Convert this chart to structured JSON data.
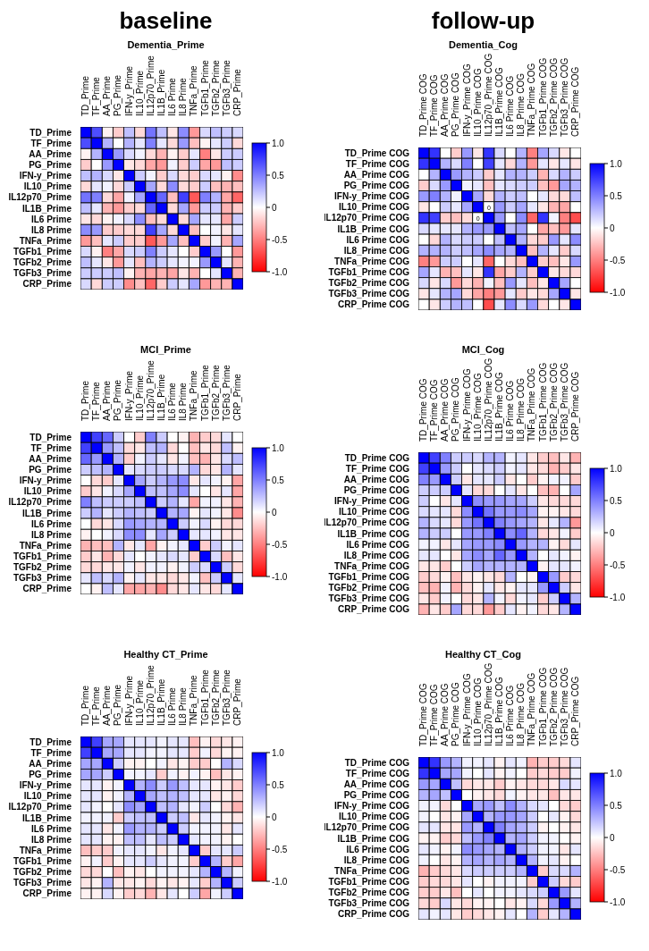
{
  "chart_data": [
    {
      "type": "heatmap",
      "title": "Dementia_Prime",
      "annotations": [
        "baseline"
      ],
      "categories": [
        "TD_Prime",
        "TF_Prime",
        "AA_Prime",
        "PG_Prime",
        "IFN-y_Prime",
        "IL10_Prime",
        "IL12p70_Prime",
        "IL1B_Prime",
        "IL6 Prime",
        "IL8 Prime",
        "TNFa_Prime",
        "TGFb1_Prime",
        "TGFb2_Prime",
        "TGFb3_Prime",
        "CRP_Prime"
      ],
      "y_categories": [
        "TD_Prime",
        "TF_Prime",
        "AA_Prime",
        "PG_Prime",
        "IFN-y_Prime",
        "IL10_Prime",
        "IL12p70_Prime",
        "IL1B_Prime",
        "IL6 Prime",
        "IL8 Prime",
        "TNFa_Prime",
        "TGFb1_Prime",
        "TGFb2_Prime",
        "TGFb3_Prime",
        "CRP_Prime"
      ],
      "cells": [
        [
          1,
          0.7,
          -0.05,
          -0.2,
          0.25,
          -0.15,
          0.55,
          0.25,
          -0.1,
          0.45,
          -0.4,
          0.15,
          0.25,
          0.2,
          0.15
        ],
        [
          0.7,
          1,
          0.3,
          0,
          0.3,
          0.1,
          0.5,
          0.1,
          -0.15,
          0.4,
          -0.25,
          -0.05,
          0.1,
          0.2,
          -0.15
        ],
        [
          -0.05,
          0.3,
          1,
          0.4,
          0.15,
          0.05,
          -0.15,
          -0.3,
          -0.05,
          -0.2,
          0.1,
          -0.5,
          -0.1,
          0.2,
          0.2
        ],
        [
          -0.2,
          0,
          0.4,
          1,
          -0.1,
          -0.15,
          -0.35,
          -0.4,
          0.05,
          -0.2,
          0.2,
          -0.35,
          -0.4,
          0.25,
          0.2
        ],
        [
          0.25,
          0.3,
          0.15,
          -0.1,
          1,
          0.2,
          0.05,
          -0.2,
          0.15,
          -0.15,
          -0.2,
          0.15,
          0.1,
          -0.05,
          -0.45
        ],
        [
          -0.15,
          0.1,
          0.05,
          -0.15,
          0.2,
          1,
          0.35,
          -0.15,
          0.45,
          -0.15,
          -0.2,
          0.2,
          -0.25,
          -0.3,
          -0.25
        ],
        [
          0.55,
          0.5,
          -0.15,
          -0.35,
          0.05,
          0.35,
          1,
          0.6,
          -0.25,
          0.75,
          -0.65,
          0.5,
          0.3,
          -0.35,
          -0.6
        ],
        [
          0.25,
          0.1,
          -0.3,
          -0.4,
          -0.2,
          -0.15,
          0.6,
          1,
          -0.15,
          0.35,
          -0.4,
          0.2,
          0.2,
          -0.3,
          -0.2
        ],
        [
          -0.1,
          -0.15,
          -0.05,
          0.05,
          0.15,
          0.45,
          -0.25,
          -0.15,
          1,
          -0.15,
          0.35,
          0.1,
          0.1,
          -0.35,
          0.2
        ],
        [
          0.45,
          0.4,
          -0.2,
          -0.2,
          -0.15,
          -0.15,
          0.75,
          0.35,
          -0.15,
          1,
          -0.25,
          0,
          0.05,
          -0.1,
          0.1
        ],
        [
          -0.4,
          -0.25,
          0.1,
          0.2,
          -0.2,
          -0.2,
          -0.65,
          -0.4,
          0.35,
          -0.25,
          1,
          -0.2,
          0.05,
          -0.3,
          0.35
        ],
        [
          0.15,
          -0.05,
          -0.5,
          -0.35,
          0.15,
          0.2,
          0.5,
          0.2,
          0.1,
          0,
          -0.2,
          1,
          0.4,
          0,
          -0.4
        ],
        [
          0.25,
          0.1,
          -0.1,
          -0.4,
          0.1,
          -0.25,
          0.3,
          0.2,
          0.1,
          0.05,
          0.05,
          0.4,
          1,
          0.1,
          -0.3
        ],
        [
          0.2,
          0.2,
          0.2,
          0.25,
          -0.05,
          -0.3,
          -0.35,
          -0.3,
          -0.35,
          -0.1,
          -0.3,
          0,
          0.1,
          1,
          -0.3
        ],
        [
          0.15,
          -0.15,
          0.2,
          0.2,
          -0.45,
          -0.25,
          -0.6,
          -0.2,
          0.2,
          0.1,
          0.35,
          -0.4,
          -0.3,
          -0.3,
          1
        ]
      ],
      "clim": [
        -1,
        1
      ],
      "cticks": [
        {
          "value": 1,
          "label": "1.0"
        },
        {
          "value": 0.5,
          "label": "0.5"
        },
        {
          "value": 0,
          "label": "0"
        },
        {
          "value": -0.5,
          "label": "-0.5"
        },
        {
          "value": -1,
          "label": "-1.0"
        }
      ]
    },
    {
      "type": "heatmap",
      "title": "Dementia_Cog",
      "annotations": [
        "follow-up"
      ],
      "categories": [
        "TD_Prime COG",
        "TF_Prime COG",
        "AA_Prime COG",
        "PG_Prime COG",
        "IFN-y_Prime COG",
        "IL10_Prime COG",
        "IL12p70_Prime COG",
        "IL1B_Prime COG",
        "IL6 Prime COG",
        "IL8_Prime COG",
        "TNFa_Prime COG",
        "TGFb1_Prime COG",
        "TGFb2_Prime COG",
        "TGFb3_Prime COG",
        "CRP_Prime COG"
      ],
      "y_categories": [
        "TD_Prime COG",
        "TF_Prime COG",
        "AA_Prime COG",
        "PG_Prime COG",
        "IFN-y_Prime COG",
        "IL10_Prime COG",
        "IL12p70_Prime COG",
        "IL1B_Prime COG",
        "IL6 Prime COG",
        "IL8_Prime COG",
        "TNFa_Prime COG",
        "TGFb1_Prime COG",
        "TGFb2_Prime COG",
        "TGFb3_Prime COG",
        "CRP_Prime COG"
      ],
      "cells": [
        [
          1,
          0.8,
          0,
          -0.2,
          0.4,
          -0.1,
          0.8,
          0.15,
          0,
          0.3,
          -0.5,
          0.35,
          0.15,
          -0.1,
          0
        ],
        [
          0.8,
          1,
          0.3,
          0.15,
          0.5,
          0,
          0.75,
          0.1,
          -0.15,
          0.3,
          -0.4,
          0.1,
          -0.1,
          0.1,
          -0.1
        ],
        [
          0,
          0.3,
          1,
          0.4,
          0.3,
          0.2,
          -0.2,
          0.1,
          0.3,
          0.3,
          0.2,
          -0.3,
          0.15,
          0.3,
          0.2
        ],
        [
          -0.2,
          0.15,
          0.4,
          1,
          0.05,
          0.1,
          -0.25,
          0.1,
          0.15,
          0.2,
          0.2,
          -0.25,
          -0.4,
          0.35,
          0.3
        ],
        [
          0.4,
          0.5,
          0.3,
          0.05,
          1,
          0.35,
          -0.15,
          0.3,
          0.2,
          0.25,
          0,
          0.1,
          -0.15,
          -0.15,
          0.25
        ],
        [
          -0.1,
          0,
          0.2,
          0.1,
          0.35,
          1,
          0,
          0.4,
          0.2,
          0.35,
          0.1,
          -0.1,
          -0.3,
          -0.35,
          0
        ],
        [
          0.8,
          0.75,
          -0.2,
          -0.25,
          -0.15,
          0,
          1,
          0.4,
          0,
          0.45,
          -0.6,
          0.8,
          0.05,
          -0.5,
          -0.7
        ],
        [
          0.15,
          0.1,
          0.1,
          0.1,
          0.3,
          0.4,
          0.4,
          1,
          0.25,
          0.35,
          0,
          -0.35,
          -0.25,
          -0.4,
          0.1
        ],
        [
          0,
          -0.15,
          0.3,
          0.15,
          0.2,
          0.2,
          0,
          0.25,
          1,
          0.3,
          -0.15,
          -0.2,
          0.4,
          0.1,
          0.45
        ],
        [
          0.3,
          0.3,
          0.3,
          0.2,
          0.25,
          0.35,
          0.45,
          0.35,
          0.3,
          1,
          -0.25,
          0.3,
          0.1,
          -0.2,
          0.15
        ],
        [
          -0.5,
          -0.4,
          0.2,
          0.2,
          0,
          0.1,
          -0.6,
          0,
          -0.15,
          -0.25,
          1,
          -0.2,
          -0.25,
          -0.1,
          0.4
        ],
        [
          0.35,
          0.1,
          -0.3,
          -0.25,
          0.1,
          -0.1,
          0.8,
          -0.35,
          -0.2,
          0.3,
          -0.2,
          1,
          -0.1,
          -0.15,
          -0.15
        ],
        [
          0.15,
          -0.1,
          0.15,
          -0.4,
          -0.15,
          -0.3,
          0.05,
          -0.25,
          0.4,
          0.1,
          -0.25,
          -0.1,
          1,
          0.35,
          0
        ],
        [
          -0.1,
          0.1,
          0.3,
          0.35,
          -0.15,
          -0.35,
          -0.5,
          -0.4,
          0.1,
          -0.2,
          -0.1,
          -0.15,
          0.35,
          1,
          -0.1
        ],
        [
          0,
          -0.1,
          0.2,
          0.3,
          0.25,
          0,
          -0.7,
          0.1,
          0.45,
          0.15,
          0.4,
          -0.15,
          0,
          -0.1,
          1
        ]
      ],
      "cell_labels": [
        [
          null,
          null,
          null,
          null,
          null,
          null,
          null,
          null,
          null,
          null,
          null,
          null,
          null,
          null,
          null
        ],
        [
          null,
          null,
          null,
          null,
          null,
          null,
          null,
          null,
          null,
          null,
          null,
          null,
          null,
          null,
          null
        ],
        [
          null,
          null,
          null,
          null,
          null,
          null,
          null,
          null,
          null,
          null,
          null,
          null,
          null,
          null,
          null
        ],
        [
          null,
          null,
          null,
          null,
          null,
          null,
          null,
          null,
          null,
          null,
          null,
          null,
          null,
          null,
          null
        ],
        [
          null,
          null,
          null,
          null,
          null,
          null,
          null,
          null,
          null,
          null,
          null,
          null,
          null,
          null,
          null
        ],
        [
          null,
          null,
          null,
          null,
          null,
          null,
          "0",
          null,
          null,
          null,
          null,
          null,
          null,
          null,
          null
        ],
        [
          null,
          null,
          null,
          null,
          null,
          "0",
          null,
          null,
          null,
          null,
          null,
          null,
          null,
          null,
          null
        ],
        [
          null,
          null,
          null,
          null,
          null,
          null,
          null,
          null,
          null,
          null,
          null,
          null,
          null,
          null,
          null
        ],
        [
          null,
          null,
          null,
          null,
          null,
          null,
          null,
          null,
          null,
          null,
          null,
          null,
          null,
          null,
          null
        ],
        [
          null,
          null,
          null,
          null,
          null,
          null,
          null,
          null,
          null,
          null,
          null,
          null,
          null,
          null,
          null
        ],
        [
          null,
          null,
          null,
          null,
          null,
          null,
          null,
          null,
          null,
          null,
          null,
          null,
          null,
          null,
          null
        ],
        [
          null,
          null,
          null,
          null,
          null,
          null,
          null,
          null,
          null,
          null,
          null,
          null,
          null,
          null,
          null
        ],
        [
          null,
          null,
          null,
          null,
          null,
          null,
          null,
          null,
          null,
          null,
          null,
          null,
          null,
          null,
          null
        ],
        [
          null,
          null,
          null,
          null,
          null,
          null,
          null,
          null,
          null,
          null,
          null,
          null,
          null,
          null,
          null
        ],
        [
          null,
          null,
          null,
          null,
          null,
          null,
          null,
          null,
          null,
          null,
          null,
          null,
          null,
          null,
          null
        ]
      ],
      "clim": [
        -1,
        1
      ],
      "cticks": [
        {
          "value": 1,
          "label": "1.0"
        },
        {
          "value": 0.5,
          "label": "0.5"
        },
        {
          "value": 0,
          "label": "0"
        },
        {
          "value": -0.5,
          "label": "-0.5"
        },
        {
          "value": -1,
          "label": "-1.0"
        }
      ]
    },
    {
      "type": "heatmap",
      "title": "MCI_Prime",
      "categories": [
        "TD_Prime",
        "TF_Prime",
        "AA_Prime",
        "PG_Prime",
        "IFN-y_Prime",
        "IL10_Prime",
        "IL12p70_Prime",
        "IL1B_Prime",
        "IL6 Prime",
        "IL8 Prime",
        "TNFa_Prime",
        "TGFb1_Prime",
        "TGFb2_Prime",
        "TGFb3_Prime",
        "CRP_Prime"
      ],
      "y_categories": [
        "TD_Prime",
        "TF_Prime",
        "AA_Prime",
        "PG_Prime",
        "IFN-y_Prime",
        "IL10_Prime",
        "IL12p70_Prime",
        "IL1B_Prime",
        "IL6 Prime",
        "IL8 Prime",
        "TNFa_Prime",
        "TGFb1_Prime",
        "TGFb2_Prime",
        "TGFb3_Prime",
        "CRP_Prime"
      ],
      "cells": [
        [
          1,
          0.75,
          0.6,
          0.2,
          0,
          -0.2,
          0.5,
          0.2,
          0,
          -0.05,
          -0.3,
          -0.2,
          -0.15,
          0.1,
          0
        ],
        [
          0.75,
          1,
          0.4,
          0.25,
          -0.15,
          -0.1,
          0.25,
          0.3,
          -0.15,
          0,
          -0.25,
          -0.1,
          -0.15,
          0.25,
          -0.05
        ],
        [
          0.6,
          0.4,
          1,
          0.3,
          -0.2,
          0.05,
          0.2,
          0.1,
          -0.1,
          0.05,
          -0.25,
          -0.3,
          -0.1,
          0.15,
          0.25
        ],
        [
          0.2,
          0.25,
          0.3,
          1,
          0.1,
          0.15,
          0.2,
          0.2,
          0.15,
          0.15,
          0.3,
          -0.15,
          -0.1,
          0.3,
          0.1
        ],
        [
          0,
          -0.15,
          -0.2,
          0.1,
          1,
          0.35,
          0.2,
          0.3,
          0.4,
          0.45,
          -0.1,
          0.1,
          0.05,
          -0.05,
          -0.35
        ],
        [
          -0.2,
          -0.1,
          0.05,
          0.15,
          0.35,
          1,
          0.25,
          0.25,
          0.35,
          0.45,
          0.1,
          0,
          -0.1,
          0.1,
          -0.35
        ],
        [
          0.5,
          0.25,
          0.2,
          0.2,
          0.2,
          0.25,
          1,
          0.2,
          0.3,
          0.1,
          -0.35,
          0.05,
          0.05,
          -0.1,
          -0.3
        ],
        [
          0.2,
          0.3,
          0.1,
          0.2,
          0.3,
          0.25,
          0.2,
          1,
          0.3,
          0.35,
          -0.05,
          0.1,
          0.05,
          -0.1,
          -0.45
        ],
        [
          0,
          -0.15,
          -0.1,
          0.15,
          0.4,
          0.35,
          0.3,
          0.3,
          1,
          0.2,
          0.05,
          0.15,
          -0.05,
          -0.15,
          -0.15
        ],
        [
          -0.05,
          0,
          0.05,
          0.15,
          0.45,
          0.45,
          0.1,
          0.35,
          0.2,
          1,
          0.1,
          0.1,
          0.05,
          -0.1,
          -0.1
        ],
        [
          -0.3,
          -0.25,
          -0.25,
          0.3,
          -0.1,
          0.1,
          -0.35,
          -0.05,
          0.05,
          0.1,
          1,
          -0.2,
          0.2,
          0.05,
          0.1
        ],
        [
          -0.2,
          -0.1,
          -0.3,
          -0.15,
          0.1,
          0,
          0.05,
          0.1,
          0.15,
          0.1,
          -0.2,
          1,
          0.15,
          -0.25,
          -0.1
        ],
        [
          -0.15,
          -0.15,
          -0.1,
          -0.1,
          0.05,
          -0.1,
          0.05,
          0.05,
          -0.05,
          0.05,
          0.2,
          0.15,
          1,
          0.2,
          -0.15
        ],
        [
          0.1,
          0.25,
          0.15,
          0.3,
          -0.05,
          0.1,
          -0.1,
          -0.1,
          -0.15,
          -0.1,
          0.05,
          -0.25,
          0.2,
          1,
          0.1
        ],
        [
          0,
          -0.05,
          0.25,
          0.1,
          -0.35,
          -0.35,
          -0.3,
          -0.45,
          -0.15,
          -0.1,
          0.1,
          -0.1,
          -0.15,
          0.1,
          1
        ]
      ],
      "clim": [
        -1,
        1
      ],
      "cticks": [
        {
          "value": 1,
          "label": "1.0"
        },
        {
          "value": 0.5,
          "label": "0.5"
        },
        {
          "value": 0,
          "label": "0"
        },
        {
          "value": -0.5,
          "label": "-0.5"
        },
        {
          "value": -1,
          "label": "-1.0"
        }
      ]
    },
    {
      "type": "heatmap",
      "title": "MCI_Cog",
      "categories": [
        "TD_Prime COG",
        "TF_Prime COG",
        "AA_Prime COG",
        "PG_Prime COG",
        "IFN-y_Prime COG",
        "IL10_Prime COG",
        "IL12p70_Prime COG",
        "IL1B_Prime COG",
        "IL6 Prime COG",
        "IL8_Prime COG",
        "TNFa_Prime COG",
        "TGFb1_Prime COG",
        "TGFb2_Prime COG",
        "TGFb3_Prime COG",
        "CRP_Prime COG"
      ],
      "y_categories": [
        "TD_Prime COG",
        "TF_Prime COG",
        "AA_Prime COG",
        "PG_Prime COG",
        "IFN-y_Prime COG",
        "IL10_Prime COG",
        "IL12p70_Prime COG",
        "IL1B_Prime COG",
        "IL6 Prime COG",
        "IL8_Prime COG",
        "TNFa_Prime COG",
        "TGFb1_Prime COG",
        "TGFb2_Prime COG",
        "TGFb3_Prime COG",
        "CRP_Prime COG"
      ],
      "cells": [
        [
          1,
          0.75,
          0.5,
          0.2,
          0.2,
          0.15,
          0.3,
          0.3,
          0.05,
          0.1,
          -0.1,
          -0.2,
          -0.25,
          -0.1,
          -0.3
        ],
        [
          0.75,
          1,
          0.4,
          0.2,
          0,
          0.1,
          0.15,
          0.2,
          0.05,
          0.1,
          -0.1,
          -0.15,
          -0.3,
          -0.2,
          -0.1
        ],
        [
          0.5,
          0.4,
          1,
          0.2,
          -0.1,
          0.1,
          0.1,
          0.2,
          -0.1,
          0,
          -0.2,
          -0.05,
          0.05,
          0.05,
          -0.2
        ],
        [
          0.2,
          0.2,
          0.2,
          1,
          0.1,
          -0.15,
          -0.15,
          0,
          0.1,
          -0.1,
          0,
          -0.25,
          -0.3,
          0,
          0.35
        ],
        [
          0.2,
          0,
          -0.1,
          0.1,
          1,
          0.45,
          0.4,
          0.4,
          0.35,
          0.35,
          0.2,
          -0.1,
          -0.15,
          -0.15,
          -0.15
        ],
        [
          0.15,
          0.1,
          0.1,
          -0.15,
          0.45,
          1,
          0.55,
          0.4,
          0.4,
          0.45,
          0.35,
          -0.05,
          -0.05,
          -0.1,
          -0.15
        ],
        [
          0.3,
          0.15,
          0.1,
          -0.15,
          0.4,
          0.55,
          1,
          0.5,
          0.4,
          0.35,
          0.3,
          -0.1,
          0.1,
          0.3,
          -0.4
        ],
        [
          0.3,
          0.2,
          0.2,
          0,
          0.4,
          0.4,
          0.5,
          1,
          0.45,
          0.6,
          0.3,
          -0.15,
          -0.1,
          0.05,
          -0.2
        ],
        [
          0.05,
          0.05,
          -0.1,
          0.1,
          0.35,
          0.4,
          0.4,
          0.45,
          1,
          0.4,
          0.3,
          0.3,
          -0.05,
          -0.15,
          0.1
        ],
        [
          0.1,
          0.1,
          0,
          -0.1,
          0.35,
          0.45,
          0.35,
          0.6,
          0.4,
          1,
          0.3,
          0,
          0.1,
          0.05,
          -0.05
        ],
        [
          -0.1,
          -0.1,
          -0.2,
          0,
          0.2,
          0.35,
          0.3,
          0.3,
          0.3,
          0.3,
          1,
          -0.05,
          0.1,
          0.1,
          0.05
        ],
        [
          -0.2,
          -0.15,
          -0.05,
          -0.25,
          -0.1,
          -0.05,
          -0.1,
          -0.15,
          0.3,
          0,
          -0.05,
          1,
          0.4,
          -0.2,
          -0.15
        ],
        [
          -0.25,
          -0.3,
          0.05,
          -0.3,
          -0.15,
          -0.05,
          0.1,
          -0.1,
          -0.05,
          0.1,
          0.1,
          0.4,
          1,
          0.2,
          -0.1
        ],
        [
          -0.1,
          -0.2,
          0.05,
          0,
          -0.15,
          -0.1,
          0.3,
          0.05,
          -0.15,
          0.05,
          0.1,
          -0.2,
          0.2,
          1,
          0.3
        ],
        [
          -0.3,
          -0.1,
          -0.2,
          0.35,
          -0.15,
          -0.15,
          -0.4,
          -0.2,
          0.1,
          -0.05,
          0.05,
          -0.15,
          -0.1,
          0.3,
          1
        ]
      ],
      "clim": [
        -1,
        1
      ],
      "cticks": [
        {
          "value": 1,
          "label": "1.0"
        },
        {
          "value": 0.5,
          "label": "0.5"
        },
        {
          "value": 0,
          "label": "0"
        },
        {
          "value": -0.5,
          "label": "-0.5"
        },
        {
          "value": -1,
          "label": "-1.0"
        }
      ]
    },
    {
      "type": "heatmap",
      "title": "Healthy CT_Prime",
      "categories": [
        "TD_Prime",
        "TF_Prime",
        "AA_Prime",
        "PG_Prime",
        "IFN-y_Prime",
        "IL10_Prime",
        "IL12p70_Prime",
        "IL1B_Prime",
        "IL6 Prime",
        "IL8 Prime",
        "TNFa_Prime",
        "TGFb1_Prime",
        "TGFb2_Prime",
        "TGFb3_Prime",
        "CRP_Prime"
      ],
      "y_categories": [
        "TD_Prime",
        "TF_Prime",
        "AA_Prime",
        "PG_Prime",
        "IFN-y_Prime",
        "IL10_Prime",
        "IL12p70_Prime",
        "IL1B_Prime",
        "IL6 Prime",
        "IL8 Prime",
        "TNFa_Prime",
        "TGFb1_Prime",
        "TGFb2_Prime",
        "TGFb3_Prime",
        "CRP_Prime"
      ],
      "cells": [
        [
          1,
          0.75,
          0.35,
          0.35,
          0.1,
          0.1,
          0.1,
          0.05,
          0.1,
          0.1,
          -0.25,
          -0.05,
          -0.15,
          -0.1,
          -0.05
        ],
        [
          0.75,
          1,
          0.35,
          0.35,
          0.1,
          0.1,
          0.05,
          0.05,
          0.1,
          0.1,
          -0.2,
          0.05,
          -0.15,
          -0.05,
          -0.05
        ],
        [
          0.35,
          0.35,
          1,
          0.2,
          -0.05,
          -0.05,
          0,
          0.05,
          -0.1,
          -0.05,
          -0.2,
          -0.2,
          0,
          0.3,
          0.15
        ],
        [
          0.35,
          0.35,
          0.2,
          1,
          0.05,
          0.05,
          0.1,
          -0.2,
          0.05,
          -0.05,
          0.05,
          -0.05,
          -0.25,
          -0.1,
          -0.05
        ],
        [
          0.1,
          0.1,
          -0.05,
          0.05,
          1,
          0.3,
          0.45,
          0.2,
          0.4,
          0.25,
          0.1,
          0.1,
          -0.05,
          -0.1,
          -0.2
        ],
        [
          0.1,
          0.1,
          -0.05,
          0.05,
          0.3,
          1,
          0.35,
          0.25,
          0.3,
          0.25,
          0.1,
          0.1,
          -0.1,
          -0.05,
          -0.15
        ],
        [
          0.1,
          0.05,
          0,
          0.1,
          0.45,
          0.35,
          1,
          0.25,
          0.3,
          0.1,
          0.05,
          0.2,
          0,
          -0.15,
          -0.3
        ],
        [
          0.05,
          0.05,
          0.05,
          -0.2,
          0.2,
          0.25,
          0.25,
          1,
          0.2,
          0.25,
          -0.1,
          0.1,
          0.05,
          -0.05,
          -0.1
        ],
        [
          0.1,
          0.1,
          -0.1,
          0.05,
          0.4,
          0.3,
          0.3,
          0.2,
          1,
          0.2,
          0.05,
          0.05,
          0.05,
          -0.1,
          0.1
        ],
        [
          0.1,
          0.1,
          -0.05,
          -0.05,
          0.25,
          0.25,
          0.1,
          0.25,
          0.2,
          1,
          0.1,
          0.05,
          0.05,
          -0.05,
          0
        ],
        [
          -0.25,
          -0.2,
          -0.2,
          0.05,
          0.1,
          0.1,
          0.05,
          -0.1,
          0.05,
          0.1,
          1,
          -0.2,
          0.1,
          0.1,
          0.2
        ],
        [
          -0.05,
          0.05,
          -0.2,
          -0.05,
          0.1,
          0.1,
          0.2,
          0.1,
          0.05,
          0.05,
          -0.2,
          1,
          0.3,
          -0.2,
          -0.35
        ],
        [
          -0.15,
          -0.15,
          0,
          -0.25,
          -0.05,
          -0.1,
          0,
          0.05,
          0.05,
          0.05,
          0.1,
          0.3,
          1,
          0.3,
          0.05
        ],
        [
          -0.1,
          -0.05,
          0.3,
          -0.1,
          -0.1,
          -0.05,
          -0.15,
          -0.05,
          -0.1,
          -0.05,
          0.1,
          -0.2,
          0.3,
          1,
          0.2
        ],
        [
          -0.05,
          -0.05,
          0.15,
          -0.05,
          -0.2,
          -0.15,
          -0.3,
          -0.1,
          0.1,
          0,
          0.2,
          -0.35,
          0.05,
          0.2,
          1
        ]
      ],
      "clim": [
        -1,
        1
      ],
      "cticks": [
        {
          "value": 1,
          "label": "1.0"
        },
        {
          "value": 0.5,
          "label": "0.5"
        },
        {
          "value": 0,
          "label": "0"
        },
        {
          "value": -0.5,
          "label": "-0.5"
        },
        {
          "value": -1,
          "label": "-1.0"
        }
      ]
    },
    {
      "type": "heatmap",
      "title": "Healthy CT_Cog",
      "categories": [
        "TD_Prime COG",
        "TF_Prime COG",
        "AA_Prime COG",
        "PG_Prime COG",
        "IFN-y_Prime COG",
        "IL10_Prime COG",
        "IL12p70_Prime COG",
        "IL1B_Prime COG",
        "IL6 Prime COG",
        "IL8_Prime COG",
        "TNFa_Prime COG",
        "TGFb1_Prime COG",
        "TGFb2_Prime COG",
        "TGFb3_Prime COG",
        "CRP_Prime COG"
      ],
      "y_categories": [
        "TD_Prime COG",
        "TF_Prime COG",
        "AA_Prime COG",
        "PG_Prime COG",
        "IFN-y_Prime COG",
        "IL10_Prime COG",
        "IL12p70_Prime COG",
        "IL1B_Prime COG",
        "IL6 Prime COG",
        "IL8_Prime COG",
        "TNFa_Prime COG",
        "TGFb1_Prime COG",
        "TGFb2_Prime COG",
        "TGFb3_Prime COG",
        "CRP_Prime COG"
      ],
      "cells": [
        [
          1,
          0.8,
          0.4,
          0.3,
          0.05,
          0.05,
          0.1,
          -0.05,
          0.1,
          0.05,
          -0.3,
          -0.2,
          -0.2,
          -0.15,
          0.1
        ],
        [
          0.8,
          1,
          0.35,
          0.35,
          0.05,
          0,
          0.1,
          -0.05,
          0.05,
          0,
          -0.2,
          -0.15,
          -0.2,
          -0.2,
          0.05
        ],
        [
          0.4,
          0.35,
          1,
          0.25,
          -0.15,
          -0.1,
          -0.1,
          -0.2,
          -0.05,
          -0.1,
          -0.15,
          -0.15,
          -0.1,
          0.15,
          0.1
        ],
        [
          0.3,
          0.35,
          0.25,
          1,
          0,
          -0.05,
          -0.1,
          -0.15,
          0.05,
          -0.05,
          -0.1,
          -0.1,
          -0.25,
          -0.1,
          -0.1
        ],
        [
          0.05,
          0.05,
          -0.15,
          0,
          1,
          0.35,
          0.4,
          0.25,
          0.45,
          0.3,
          0.15,
          0.1,
          0,
          -0.15,
          -0.2
        ],
        [
          0.05,
          0,
          -0.1,
          -0.05,
          0.35,
          1,
          0.3,
          0.4,
          0.4,
          0.35,
          0.2,
          0,
          0.1,
          -0.05,
          -0.15
        ],
        [
          0.1,
          0.1,
          -0.1,
          -0.1,
          0.4,
          0.3,
          1,
          0.5,
          0.35,
          0.3,
          0.2,
          -0.05,
          0,
          -0.05,
          -0.1
        ],
        [
          -0.05,
          -0.05,
          -0.2,
          -0.15,
          0.25,
          0.4,
          0.5,
          1,
          0.3,
          0.35,
          0.2,
          0.05,
          0.05,
          0,
          -0.05
        ],
        [
          0.1,
          0.05,
          -0.05,
          0.05,
          0.45,
          0.4,
          0.35,
          0.3,
          1,
          0.3,
          0.2,
          0.05,
          0.05,
          -0.1,
          0.1
        ],
        [
          0.05,
          0,
          -0.1,
          -0.05,
          0.3,
          0.35,
          0.3,
          0.35,
          0.3,
          1,
          0.3,
          0.05,
          0.1,
          -0.05,
          0
        ],
        [
          -0.3,
          -0.2,
          -0.15,
          -0.1,
          0.15,
          0.2,
          0.2,
          0.2,
          0.2,
          0.3,
          1,
          -0.2,
          0.15,
          0.15,
          0.3
        ],
        [
          -0.2,
          -0.15,
          -0.15,
          -0.1,
          0.1,
          0,
          -0.05,
          0.05,
          0.05,
          0.05,
          -0.2,
          1,
          0.2,
          -0.15,
          -0.2
        ],
        [
          -0.2,
          -0.2,
          -0.1,
          -0.25,
          0,
          0.1,
          0,
          0.05,
          0.05,
          0.1,
          0.15,
          0.2,
          1,
          0.4,
          0.1
        ],
        [
          -0.15,
          -0.2,
          0.15,
          -0.1,
          -0.15,
          -0.05,
          -0.05,
          0,
          -0.1,
          -0.05,
          0.15,
          -0.15,
          0.4,
          1,
          0.3
        ],
        [
          0.1,
          0.05,
          0.1,
          -0.1,
          -0.2,
          -0.15,
          -0.1,
          -0.05,
          0.1,
          0,
          0.3,
          -0.2,
          0.1,
          0.3,
          1
        ]
      ],
      "clim": [
        -1,
        1
      ],
      "cticks": [
        {
          "value": 1,
          "label": "1.0"
        },
        {
          "value": 0.5,
          "label": "0.5"
        },
        {
          "value": 0,
          "label": "0"
        },
        {
          "value": -0.5,
          "label": "-0.5"
        },
        {
          "value": -1,
          "label": "-1.0"
        }
      ]
    }
  ]
}
